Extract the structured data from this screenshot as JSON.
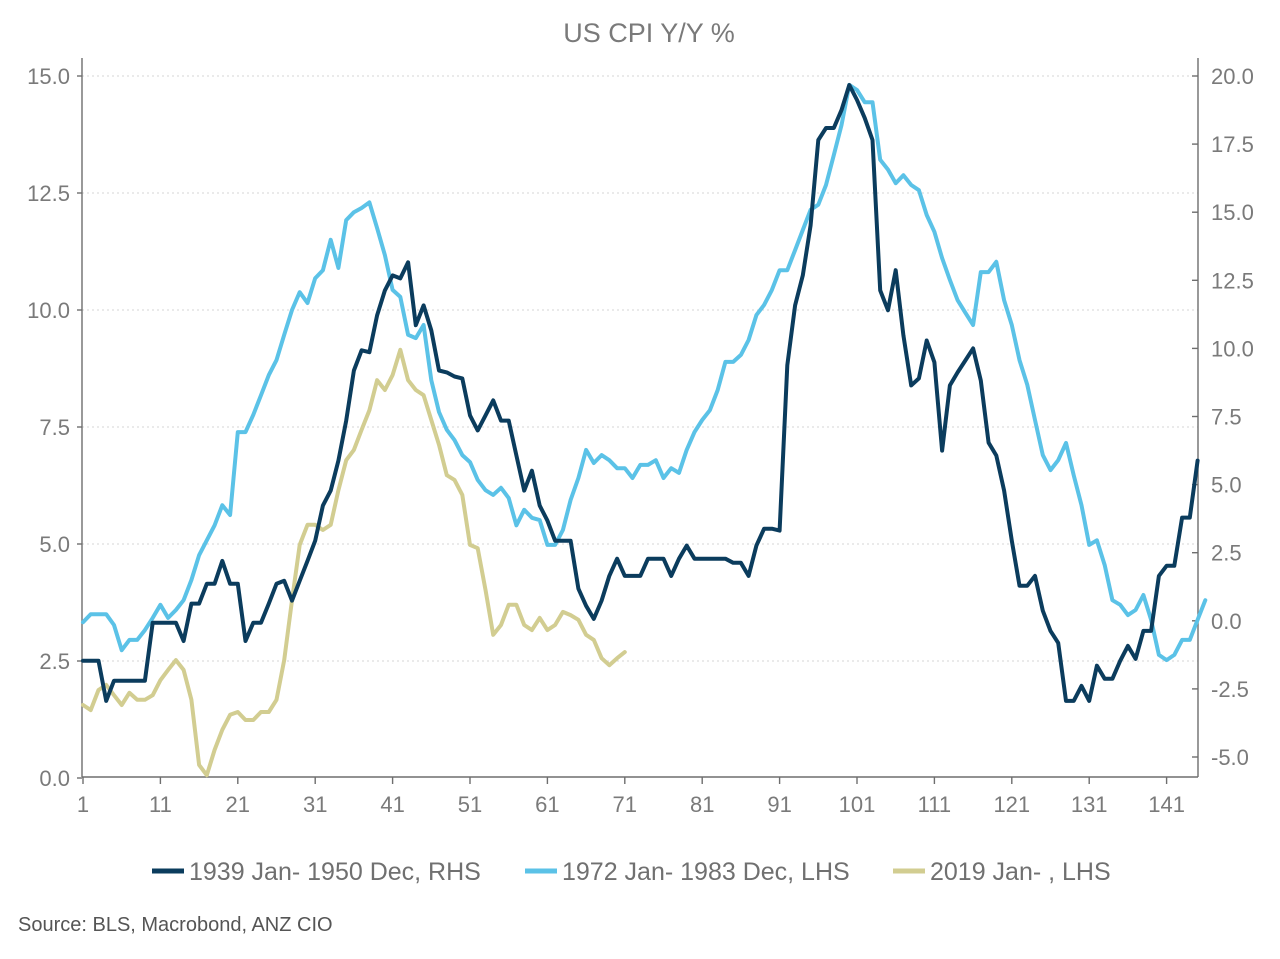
{
  "chart_data": {
    "type": "line",
    "title": "US CPI Y/Y %",
    "xlabel": "",
    "ylabel_left": "",
    "ylabel_right": "",
    "x_ticks": [
      "1",
      "11",
      "21",
      "31",
      "41",
      "51",
      "61",
      "71",
      "81",
      "91",
      "101",
      "111",
      "121",
      "131",
      "141"
    ],
    "x_range": [
      1,
      145
    ],
    "y_left": {
      "range": [
        0,
        15
      ],
      "ticks": [
        "0.0",
        "2.5",
        "5.0",
        "7.5",
        "10.0",
        "12.5",
        "15.0"
      ]
    },
    "y_right": {
      "range": [
        -5,
        20
      ],
      "ticks": [
        "-5.0",
        "-2.5",
        "0.0",
        "2.5",
        "5.0",
        "7.5",
        "10.0",
        "12.5",
        "15.0",
        "17.5",
        "20.0"
      ]
    },
    "grid": true,
    "legend_position": "bottom",
    "series": [
      {
        "name": "1939 Jan- 1950 Dec, RHS",
        "axis": "right",
        "color": "#0b3c5d",
        "values": [
          -1.47,
          -1.47,
          -1.47,
          -2.94,
          -2.2,
          -2.2,
          -2.2,
          -2.2,
          -2.2,
          -0.07,
          -0.07,
          -0.07,
          -0.07,
          -0.74,
          0.63,
          0.63,
          1.36,
          1.36,
          2.2,
          1.36,
          1.36,
          -0.74,
          -0.07,
          -0.07,
          0.63,
          1.36,
          1.47,
          0.74,
          1.47,
          2.2,
          2.94,
          4.23,
          4.78,
          5.88,
          7.35,
          9.19,
          9.93,
          9.86,
          11.21,
          12.13,
          12.68,
          12.57,
          13.16,
          10.85,
          11.58,
          10.66,
          9.19,
          9.12,
          8.97,
          8.9,
          7.54,
          6.99,
          7.54,
          8.09,
          7.35,
          7.35,
          6.07,
          4.78,
          5.51,
          4.23,
          3.68,
          2.94,
          2.94,
          2.94,
          1.18,
          0.55,
          0.07,
          0.74,
          1.65,
          2.28,
          1.65,
          1.65,
          1.65,
          2.28,
          2.28,
          2.28,
          1.65,
          2.28,
          2.76,
          2.28,
          2.28,
          2.28,
          2.28,
          2.28,
          2.13,
          2.13,
          1.65,
          2.76,
          3.38,
          3.38,
          3.31,
          9.38,
          11.58,
          12.68,
          14.52,
          17.65,
          18.09,
          18.09,
          18.75,
          19.67,
          19.12,
          18.46,
          17.65,
          12.13,
          11.4,
          12.87,
          10.48,
          8.64,
          8.9,
          10.29,
          9.49,
          6.25,
          8.64,
          9.12,
          9.56,
          10.0,
          8.82,
          6.54,
          6.07,
          4.78,
          2.94,
          1.29,
          1.29,
          1.65,
          0.37,
          -0.37,
          -0.81,
          -2.94,
          -2.94,
          -2.39,
          -2.94,
          -1.65,
          -2.13,
          -2.13,
          -1.47,
          -0.92,
          -1.4,
          -0.37,
          -0.37,
          1.65,
          2.02,
          2.02,
          3.79,
          3.79,
          5.88
        ]
      },
      {
        "name": "1972 Jan- 1983 Dec, LHS",
        "axis": "left",
        "color": "#5bc2e7",
        "values": [
          3.33,
          3.5,
          3.5,
          3.5,
          3.27,
          2.73,
          2.95,
          2.95,
          3.16,
          3.42,
          3.7,
          3.42,
          3.59,
          3.8,
          4.23,
          4.76,
          5.08,
          5.4,
          5.83,
          5.62,
          7.39,
          7.39,
          7.76,
          8.18,
          8.61,
          8.93,
          9.47,
          10.0,
          10.38,
          10.15,
          10.68,
          10.85,
          11.5,
          10.9,
          11.92,
          12.09,
          12.18,
          12.3,
          11.75,
          11.17,
          10.43,
          10.28,
          9.47,
          9.4,
          9.68,
          8.5,
          7.82,
          7.44,
          7.22,
          6.9,
          6.75,
          6.37,
          6.15,
          6.05,
          6.2,
          5.98,
          5.4,
          5.73,
          5.56,
          5.51,
          4.98,
          4.98,
          5.3,
          5.94,
          6.41,
          7.01,
          6.73,
          6.9,
          6.79,
          6.62,
          6.62,
          6.41,
          6.69,
          6.69,
          6.79,
          6.41,
          6.62,
          6.52,
          7.01,
          7.39,
          7.65,
          7.86,
          8.29,
          8.89,
          8.89,
          9.04,
          9.36,
          9.89,
          10.11,
          10.43,
          10.85,
          10.85,
          11.28,
          11.71,
          12.14,
          12.25,
          12.67,
          13.31,
          13.95,
          14.81,
          14.7,
          14.44,
          14.44,
          13.21,
          13.0,
          12.71,
          12.88,
          12.67,
          12.56,
          12.03,
          11.67,
          11.11,
          10.64,
          10.21,
          9.94,
          9.68,
          10.81,
          10.81,
          11.03,
          10.21,
          9.68,
          8.93,
          8.4,
          7.65,
          6.9,
          6.58,
          6.79,
          7.16,
          6.47,
          5.83,
          4.98,
          5.08,
          4.55,
          3.8,
          3.7,
          3.48,
          3.59,
          3.91,
          3.38,
          2.63,
          2.52,
          2.63,
          2.95,
          2.95,
          3.38,
          3.8
        ]
      },
      {
        "name": "2019 Jan- , LHS",
        "axis": "left",
        "color": "#d2cd91",
        "values": [
          1.56,
          1.45,
          1.88,
          1.99,
          1.77,
          1.56,
          1.82,
          1.67,
          1.67,
          1.77,
          2.09,
          2.31,
          2.52,
          2.31,
          1.67,
          0.28,
          0.06,
          0.6,
          1.03,
          1.35,
          1.41,
          1.24,
          1.24,
          1.41,
          1.41,
          1.67,
          2.52,
          3.8,
          4.98,
          5.41,
          5.41,
          5.3,
          5.41,
          6.15,
          6.79,
          7.01,
          7.44,
          7.86,
          8.5,
          8.29,
          8.61,
          9.15,
          8.5,
          8.29,
          8.18,
          7.65,
          7.12,
          6.47,
          6.37,
          6.05,
          4.98,
          4.91,
          4.02,
          3.06,
          3.27,
          3.7,
          3.7,
          3.27,
          3.16,
          3.42,
          3.16,
          3.27,
          3.55,
          3.48,
          3.38,
          3.06,
          2.95,
          2.56,
          2.41,
          2.56,
          2.69
        ]
      }
    ],
    "source": "Source: BLS, Macrobond, ANZ CIO"
  }
}
